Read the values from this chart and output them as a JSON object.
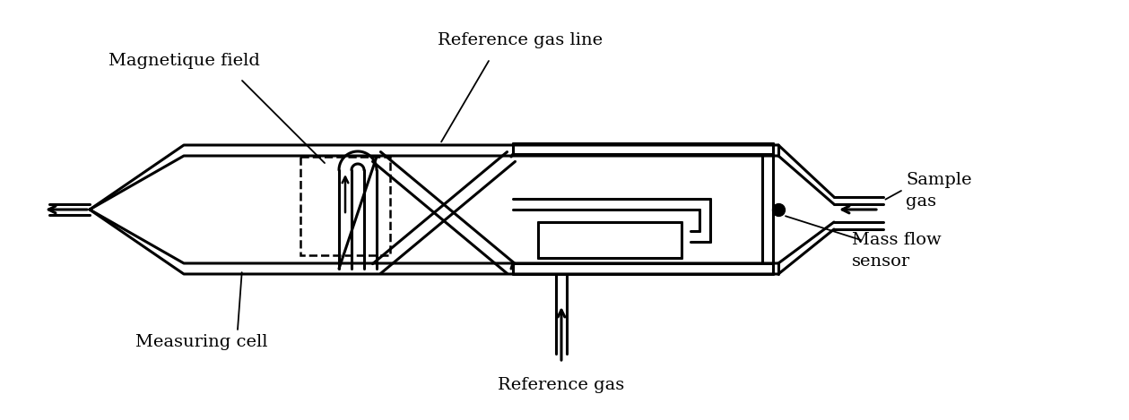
{
  "bg_color": "#ffffff",
  "line_color": "#000000",
  "lw": 2.2,
  "lw_thin": 1.3,
  "labels": {
    "magnetique_field": "Magnetique field",
    "reference_gas_line": "Reference gas line",
    "sample_gas": "Sample\ngas",
    "mass_flow_sensor": "Mass flow\nsensor",
    "measuring_cell": "Measuring cell",
    "reference_gas": "Reference gas"
  },
  "figsize": [
    12.59,
    4.69
  ],
  "dpi": 100
}
